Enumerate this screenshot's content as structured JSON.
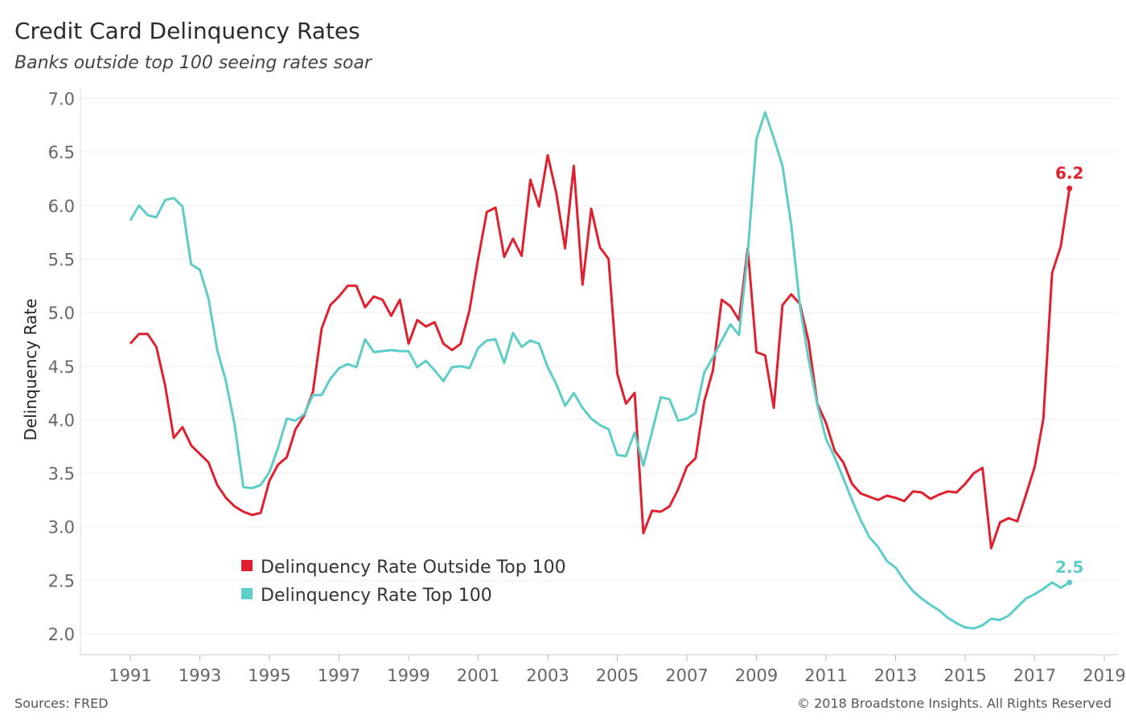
{
  "header": {
    "title": "Credit Card Delinquency Rates",
    "subtitle": "Banks outside top 100 seeing rates soar"
  },
  "footer": {
    "source": "Sources: FRED",
    "copyright": "© 2018 Broadstone Insights. All Rights Reserved"
  },
  "colors": {
    "outside": "#e0202e",
    "top100": "#5ecdc8",
    "grid": "#eeeeee"
  },
  "chart_data": {
    "type": "line",
    "title": "Credit Card Delinquency Rates",
    "subtitle": "Banks outside top 100 seeing rates soar",
    "xlabel": "",
    "ylabel": "Delinquency Rate",
    "ylim": [
      1.8,
      7.1
    ],
    "xlim": [
      1990.75,
      2019.5
    ],
    "yticks": [
      "7.0",
      "6.5",
      "6.0",
      "5.5",
      "5.0",
      "4.5",
      "4.0",
      "3.5",
      "3.0",
      "2.5",
      "2.0"
    ],
    "ytick_values": [
      7.0,
      6.5,
      6.0,
      5.5,
      5.0,
      4.5,
      4.0,
      3.5,
      3.0,
      2.5,
      2.0
    ],
    "xticks": [
      "1991",
      "1993",
      "1995",
      "1997",
      "1999",
      "2001",
      "2003",
      "2005",
      "2007",
      "2009",
      "2011",
      "2013",
      "2015",
      "2017",
      "2019"
    ],
    "xtick_values": [
      1991,
      1993,
      1995,
      1997,
      1999,
      2001,
      2003,
      2005,
      2007,
      2009,
      2011,
      2013,
      2015,
      2017,
      2019
    ],
    "grid": true,
    "legend": "bottom-left",
    "series": [
      {
        "name": "Delinquency Rate Outside Top 100",
        "color": "#e0202e",
        "end_label": "6.2",
        "points": [
          [
            1991.0,
            4.71
          ],
          [
            1991.25,
            4.8
          ],
          [
            1991.5,
            4.8
          ],
          [
            1991.75,
            4.68
          ],
          [
            1992.0,
            4.32
          ],
          [
            1992.25,
            3.83
          ],
          [
            1992.5,
            3.93
          ],
          [
            1992.75,
            3.76
          ],
          [
            1993.0,
            3.68
          ],
          [
            1993.25,
            3.6
          ],
          [
            1993.5,
            3.39
          ],
          [
            1993.75,
            3.27
          ],
          [
            1994.0,
            3.19
          ],
          [
            1994.25,
            3.14
          ],
          [
            1994.5,
            3.11
          ],
          [
            1994.75,
            3.13
          ],
          [
            1995.0,
            3.43
          ],
          [
            1995.25,
            3.58
          ],
          [
            1995.5,
            3.65
          ],
          [
            1995.75,
            3.91
          ],
          [
            1996.0,
            4.04
          ],
          [
            1996.25,
            4.26
          ],
          [
            1996.5,
            4.85
          ],
          [
            1996.75,
            5.07
          ],
          [
            1997.0,
            5.15
          ],
          [
            1997.25,
            5.25
          ],
          [
            1997.5,
            5.25
          ],
          [
            1997.75,
            5.05
          ],
          [
            1998.0,
            5.15
          ],
          [
            1998.25,
            5.12
          ],
          [
            1998.5,
            4.97
          ],
          [
            1998.75,
            5.12
          ],
          [
            1999.0,
            4.71
          ],
          [
            1999.25,
            4.93
          ],
          [
            1999.5,
            4.87
          ],
          [
            1999.75,
            4.91
          ],
          [
            2000.0,
            4.71
          ],
          [
            2000.25,
            4.65
          ],
          [
            2000.5,
            4.71
          ],
          [
            2000.75,
            5.02
          ],
          [
            2001.0,
            5.5
          ],
          [
            2001.25,
            5.94
          ],
          [
            2001.5,
            5.98
          ],
          [
            2001.75,
            5.52
          ],
          [
            2002.0,
            5.69
          ],
          [
            2002.25,
            5.53
          ],
          [
            2002.5,
            6.24
          ],
          [
            2002.75,
            5.99
          ],
          [
            2003.0,
            6.47
          ],
          [
            2003.25,
            6.11
          ],
          [
            2003.5,
            5.6
          ],
          [
            2003.75,
            6.37
          ],
          [
            2004.0,
            5.26
          ],
          [
            2004.25,
            5.97
          ],
          [
            2004.5,
            5.61
          ],
          [
            2004.75,
            5.5
          ],
          [
            2005.0,
            4.43
          ],
          [
            2005.25,
            4.15
          ],
          [
            2005.5,
            4.25
          ],
          [
            2005.75,
            2.94
          ],
          [
            2006.0,
            3.15
          ],
          [
            2006.25,
            3.14
          ],
          [
            2006.5,
            3.19
          ],
          [
            2006.75,
            3.35
          ],
          [
            2007.0,
            3.56
          ],
          [
            2007.25,
            3.64
          ],
          [
            2007.5,
            4.17
          ],
          [
            2007.75,
            4.46
          ],
          [
            2008.0,
            5.12
          ],
          [
            2008.25,
            5.06
          ],
          [
            2008.5,
            4.93
          ],
          [
            2008.75,
            5.6
          ],
          [
            2009.0,
            4.63
          ],
          [
            2009.25,
            4.6
          ],
          [
            2009.5,
            4.11
          ],
          [
            2009.75,
            5.07
          ],
          [
            2010.0,
            5.17
          ],
          [
            2010.25,
            5.08
          ],
          [
            2010.5,
            4.73
          ],
          [
            2010.75,
            4.15
          ],
          [
            2011.0,
            3.97
          ],
          [
            2011.25,
            3.71
          ],
          [
            2011.5,
            3.6
          ],
          [
            2011.75,
            3.4
          ],
          [
            2012.0,
            3.31
          ],
          [
            2012.25,
            3.28
          ],
          [
            2012.5,
            3.25
          ],
          [
            2012.75,
            3.29
          ],
          [
            2013.0,
            3.27
          ],
          [
            2013.25,
            3.24
          ],
          [
            2013.5,
            3.33
          ],
          [
            2013.75,
            3.32
          ],
          [
            2014.0,
            3.26
          ],
          [
            2014.25,
            3.3
          ],
          [
            2014.5,
            3.33
          ],
          [
            2014.75,
            3.32
          ],
          [
            2015.0,
            3.4
          ],
          [
            2015.25,
            3.5
          ],
          [
            2015.5,
            3.55
          ],
          [
            2015.75,
            2.8
          ],
          [
            2016.0,
            3.04
          ],
          [
            2016.25,
            3.08
          ],
          [
            2016.5,
            3.05
          ],
          [
            2016.75,
            3.3
          ],
          [
            2017.0,
            3.56
          ],
          [
            2017.25,
            4.01
          ],
          [
            2017.5,
            5.37
          ],
          [
            2017.75,
            5.62
          ],
          [
            2018.0,
            6.16
          ]
        ]
      },
      {
        "name": "Delinquency Rate Top 100",
        "color": "#5ecdc8",
        "end_label": "2.5",
        "points": [
          [
            1991.0,
            5.86
          ],
          [
            1991.25,
            6.0
          ],
          [
            1991.5,
            5.91
          ],
          [
            1991.75,
            5.89
          ],
          [
            1992.0,
            6.05
          ],
          [
            1992.25,
            6.07
          ],
          [
            1992.5,
            5.99
          ],
          [
            1992.75,
            5.45
          ],
          [
            1993.0,
            5.4
          ],
          [
            1993.25,
            5.13
          ],
          [
            1993.5,
            4.65
          ],
          [
            1993.75,
            4.36
          ],
          [
            1994.0,
            3.95
          ],
          [
            1994.25,
            3.37
          ],
          [
            1994.5,
            3.36
          ],
          [
            1994.75,
            3.39
          ],
          [
            1995.0,
            3.51
          ],
          [
            1995.25,
            3.74
          ],
          [
            1995.5,
            4.01
          ],
          [
            1995.75,
            3.99
          ],
          [
            1996.0,
            4.05
          ],
          [
            1996.25,
            4.23
          ],
          [
            1996.5,
            4.23
          ],
          [
            1996.75,
            4.38
          ],
          [
            1997.0,
            4.48
          ],
          [
            1997.25,
            4.52
          ],
          [
            1997.5,
            4.49
          ],
          [
            1997.75,
            4.75
          ],
          [
            1998.0,
            4.63
          ],
          [
            1998.25,
            4.64
          ],
          [
            1998.5,
            4.65
          ],
          [
            1998.75,
            4.64
          ],
          [
            1999.0,
            4.64
          ],
          [
            1999.25,
            4.49
          ],
          [
            1999.5,
            4.55
          ],
          [
            1999.75,
            4.46
          ],
          [
            2000.0,
            4.36
          ],
          [
            2000.25,
            4.49
          ],
          [
            2000.5,
            4.5
          ],
          [
            2000.75,
            4.48
          ],
          [
            2001.0,
            4.67
          ],
          [
            2001.25,
            4.74
          ],
          [
            2001.5,
            4.75
          ],
          [
            2001.75,
            4.53
          ],
          [
            2002.0,
            4.81
          ],
          [
            2002.25,
            4.68
          ],
          [
            2002.5,
            4.74
          ],
          [
            2002.75,
            4.71
          ],
          [
            2003.0,
            4.49
          ],
          [
            2003.25,
            4.33
          ],
          [
            2003.5,
            4.13
          ],
          [
            2003.75,
            4.25
          ],
          [
            2004.0,
            4.11
          ],
          [
            2004.25,
            4.01
          ],
          [
            2004.5,
            3.95
          ],
          [
            2004.75,
            3.91
          ],
          [
            2005.0,
            3.67
          ],
          [
            2005.25,
            3.66
          ],
          [
            2005.5,
            3.88
          ],
          [
            2005.75,
            3.57
          ],
          [
            2006.0,
            3.89
          ],
          [
            2006.25,
            4.21
          ],
          [
            2006.5,
            4.19
          ],
          [
            2006.75,
            3.99
          ],
          [
            2007.0,
            4.01
          ],
          [
            2007.25,
            4.06
          ],
          [
            2007.5,
            4.44
          ],
          [
            2007.75,
            4.58
          ],
          [
            2008.0,
            4.74
          ],
          [
            2008.25,
            4.89
          ],
          [
            2008.5,
            4.79
          ],
          [
            2008.75,
            5.55
          ],
          [
            2009.0,
            6.62
          ],
          [
            2009.25,
            6.87
          ],
          [
            2009.5,
            6.63
          ],
          [
            2009.75,
            6.37
          ],
          [
            2010.0,
            5.82
          ],
          [
            2010.25,
            5.06
          ],
          [
            2010.5,
            4.56
          ],
          [
            2010.75,
            4.14
          ],
          [
            2011.0,
            3.82
          ],
          [
            2011.25,
            3.65
          ],
          [
            2011.5,
            3.45
          ],
          [
            2011.75,
            3.25
          ],
          [
            2012.0,
            3.06
          ],
          [
            2012.25,
            2.9
          ],
          [
            2012.5,
            2.81
          ],
          [
            2012.75,
            2.68
          ],
          [
            2013.0,
            2.62
          ],
          [
            2013.25,
            2.5
          ],
          [
            2013.5,
            2.4
          ],
          [
            2013.75,
            2.33
          ],
          [
            2014.0,
            2.27
          ],
          [
            2014.25,
            2.22
          ],
          [
            2014.5,
            2.15
          ],
          [
            2014.75,
            2.1
          ],
          [
            2015.0,
            2.06
          ],
          [
            2015.25,
            2.05
          ],
          [
            2015.5,
            2.08
          ],
          [
            2015.75,
            2.14
          ],
          [
            2016.0,
            2.13
          ],
          [
            2016.25,
            2.17
          ],
          [
            2016.5,
            2.25
          ],
          [
            2016.75,
            2.33
          ],
          [
            2017.0,
            2.37
          ],
          [
            2017.25,
            2.42
          ],
          [
            2017.5,
            2.48
          ],
          [
            2017.75,
            2.43
          ],
          [
            2018.0,
            2.48
          ]
        ]
      }
    ]
  }
}
